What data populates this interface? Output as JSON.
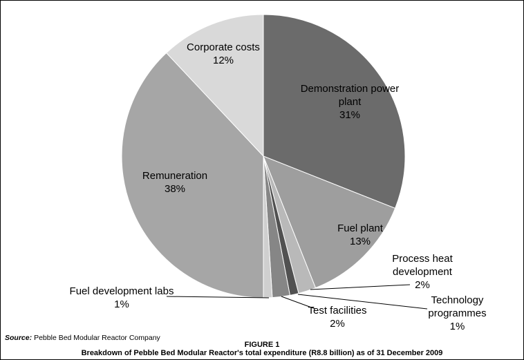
{
  "figure": {
    "source_prefix": "Source:",
    "source_text": "Pebble Bed Modular Reactor Company",
    "figure_label": "FIGURE 1",
    "caption": "Breakdown of Pebble Bed Modular Reactor's total expenditure (R8.8 billion) as of 31 December 2009"
  },
  "chart_data": {
    "type": "pie",
    "title": "",
    "start_angle": "top",
    "direction": "clockwise",
    "legend": "none",
    "value_unit": "%",
    "slices": [
      {
        "name": "Demonstration power plant",
        "value": 31,
        "pct_label": "31%",
        "color": "#6b6b6b",
        "label_placement": "inside"
      },
      {
        "name": "Fuel plant",
        "value": 13,
        "pct_label": "13%",
        "color": "#9e9e9e",
        "label_placement": "inside"
      },
      {
        "name": "Process heat development",
        "value": 2,
        "pct_label": "2%",
        "color": "#b9b9b9",
        "label_placement": "outside"
      },
      {
        "name": "Technology programmes",
        "value": 1,
        "pct_label": "1%",
        "color": "#515151",
        "label_placement": "outside"
      },
      {
        "name": "Test facilities",
        "value": 2,
        "pct_label": "2%",
        "color": "#868686",
        "label_placement": "outside"
      },
      {
        "name": "Fuel development labs",
        "value": 1,
        "pct_label": "1%",
        "color": "#cfcfcf",
        "label_placement": "outside"
      },
      {
        "name": "Remuneration",
        "value": 38,
        "pct_label": "38%",
        "color": "#a6a6a6",
        "label_placement": "inside"
      },
      {
        "name": "Corporate costs",
        "value": 12,
        "pct_label": "12%",
        "color": "#d9d9d9",
        "label_placement": "inside"
      }
    ]
  }
}
